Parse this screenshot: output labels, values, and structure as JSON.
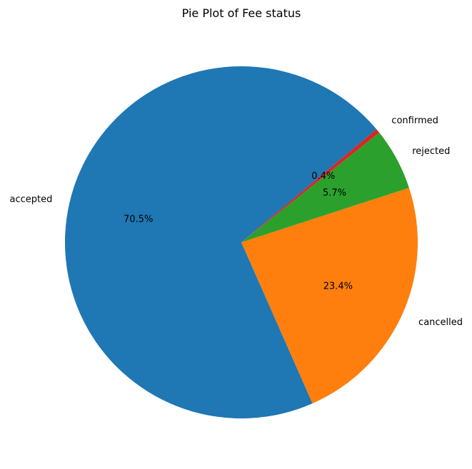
{
  "chart_data": {
    "type": "pie",
    "title": "Pie Plot of Fee status",
    "slices": [
      {
        "label": "accepted",
        "value": 70.5,
        "pct_label": "70.5%",
        "color": "#1f77b4"
      },
      {
        "label": "cancelled",
        "value": 23.4,
        "pct_label": "23.4%",
        "color": "#ff7f0e"
      },
      {
        "label": "rejected",
        "value": 5.7,
        "pct_label": "5.7%",
        "color": "#2ca02c"
      },
      {
        "label": "confirmed",
        "value": 0.4,
        "pct_label": "0.4%",
        "color": "#d62728"
      }
    ],
    "start_angle_deg": 40,
    "counterclock": true,
    "legend": "none"
  }
}
